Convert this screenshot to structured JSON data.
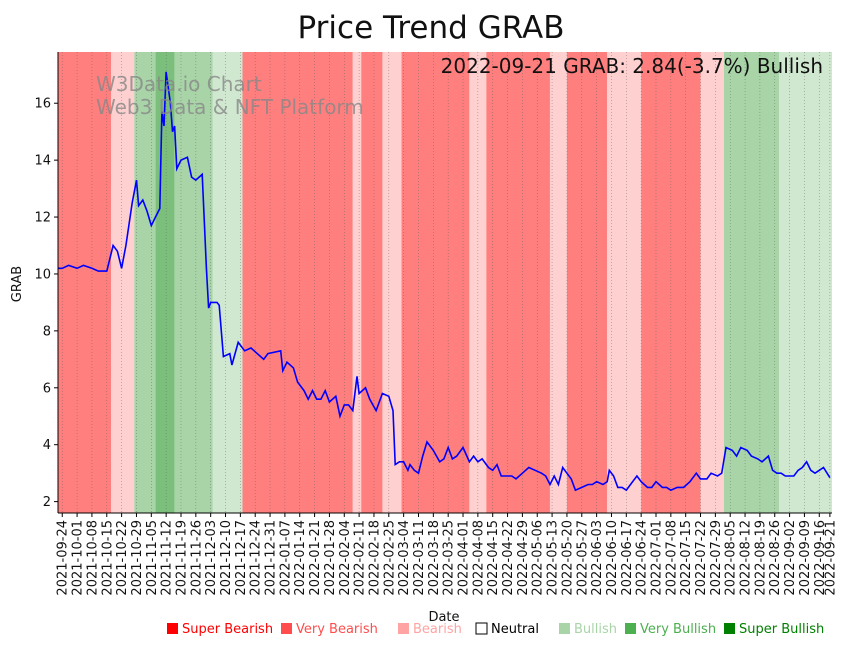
{
  "chart_data": {
    "type": "line",
    "title": "Price Trend GRAB",
    "xlabel": "Date",
    "ylabel": "GRAB",
    "annotation": "2022-09-21 GRAB: 2.84(-3.7%) Bullish",
    "watermark": [
      "W3Data.io Chart",
      "Web3 Data & NFT Platform"
    ],
    "ylim": [
      1.6,
      17.8
    ],
    "yticks": [
      2,
      4,
      6,
      8,
      10,
      12,
      14,
      16
    ],
    "date_range": [
      "2021-09-22",
      "2022-09-22"
    ],
    "xticks": [
      "2021-09-24",
      "2021-10-01",
      "2021-10-08",
      "2021-10-15",
      "2021-10-22",
      "2021-10-29",
      "2021-11-05",
      "2021-11-12",
      "2021-11-19",
      "2021-11-26",
      "2021-12-03",
      "2021-12-10",
      "2021-12-17",
      "2021-12-24",
      "2021-12-31",
      "2022-01-07",
      "2022-01-14",
      "2022-01-21",
      "2022-01-28",
      "2022-02-04",
      "2022-02-11",
      "2022-02-18",
      "2022-02-25",
      "2022-03-04",
      "2022-03-11",
      "2022-03-18",
      "2022-03-25",
      "2022-04-01",
      "2022-04-08",
      "2022-04-15",
      "2022-04-22",
      "2022-04-29",
      "2022-05-06",
      "2022-05-13",
      "2022-05-20",
      "2022-05-27",
      "2022-06-03",
      "2022-06-10",
      "2022-06-17",
      "2022-06-24",
      "2022-07-01",
      "2022-07-08",
      "2022-07-15",
      "2022-07-22",
      "2022-07-29",
      "2022-08-05",
      "2022-08-12",
      "2022-08-19",
      "2022-08-26",
      "2022-09-02",
      "2022-09-09",
      "2022-09-16",
      "2022-09-21"
    ],
    "series": [
      {
        "name": "GRAB",
        "color": "#0000ff",
        "points": [
          [
            "2021-09-22",
            10.2
          ],
          [
            "2021-09-24",
            10.2
          ],
          [
            "2021-09-27",
            10.3
          ],
          [
            "2021-10-01",
            10.2
          ],
          [
            "2021-10-04",
            10.3
          ],
          [
            "2021-10-08",
            10.2
          ],
          [
            "2021-10-11",
            10.1
          ],
          [
            "2021-10-15",
            10.1
          ],
          [
            "2021-10-18",
            11.0
          ],
          [
            "2021-10-20",
            10.8
          ],
          [
            "2021-10-22",
            10.2
          ],
          [
            "2021-10-24",
            11.0
          ],
          [
            "2021-10-27",
            12.5
          ],
          [
            "2021-10-29",
            13.3
          ],
          [
            "2021-10-30",
            12.4
          ],
          [
            "2021-11-01",
            12.6
          ],
          [
            "2021-11-03",
            12.2
          ],
          [
            "2021-11-05",
            11.7
          ],
          [
            "2021-11-07",
            12.0
          ],
          [
            "2021-11-09",
            12.3
          ],
          [
            "2021-11-10",
            15.7
          ],
          [
            "2021-11-11",
            15.2
          ],
          [
            "2021-11-12",
            17.1
          ],
          [
            "2021-11-14",
            16.0
          ],
          [
            "2021-11-15",
            15.0
          ],
          [
            "2021-11-16",
            15.2
          ],
          [
            "2021-11-17",
            13.7
          ],
          [
            "2021-11-19",
            14.0
          ],
          [
            "2021-11-22",
            14.1
          ],
          [
            "2021-11-24",
            13.4
          ],
          [
            "2021-11-26",
            13.3
          ],
          [
            "2021-11-29",
            13.5
          ],
          [
            "2021-12-01",
            10.2
          ],
          [
            "2021-12-02",
            8.8
          ],
          [
            "2021-12-03",
            9.0
          ],
          [
            "2021-12-06",
            9.0
          ],
          [
            "2021-12-07",
            8.9
          ],
          [
            "2021-12-09",
            7.1
          ],
          [
            "2021-12-12",
            7.2
          ],
          [
            "2021-12-13",
            6.8
          ],
          [
            "2021-12-16",
            7.6
          ],
          [
            "2021-12-19",
            7.3
          ],
          [
            "2021-12-22",
            7.4
          ],
          [
            "2021-12-28",
            7.0
          ],
          [
            "2021-12-30",
            7.2
          ],
          [
            "2022-01-05",
            7.3
          ],
          [
            "2022-01-06",
            6.6
          ],
          [
            "2022-01-08",
            6.9
          ],
          [
            "2022-01-11",
            6.7
          ],
          [
            "2022-01-13",
            6.2
          ],
          [
            "2022-01-16",
            5.9
          ],
          [
            "2022-01-18",
            5.6
          ],
          [
            "2022-01-20",
            5.9
          ],
          [
            "2022-01-22",
            5.6
          ],
          [
            "2022-01-24",
            5.6
          ],
          [
            "2022-01-26",
            5.9
          ],
          [
            "2022-01-28",
            5.5
          ],
          [
            "2022-01-31",
            5.7
          ],
          [
            "2022-02-02",
            5.0
          ],
          [
            "2022-02-04",
            5.4
          ],
          [
            "2022-02-06",
            5.4
          ],
          [
            "2022-02-08",
            5.2
          ],
          [
            "2022-02-10",
            6.4
          ],
          [
            "2022-02-11",
            5.8
          ],
          [
            "2022-02-14",
            6.0
          ],
          [
            "2022-02-16",
            5.6
          ],
          [
            "2022-02-19",
            5.2
          ],
          [
            "2022-02-22",
            5.8
          ],
          [
            "2022-02-25",
            5.7
          ],
          [
            "2022-02-27",
            5.2
          ],
          [
            "2022-02-28",
            3.3
          ],
          [
            "2022-03-02",
            3.4
          ],
          [
            "2022-03-04",
            3.4
          ],
          [
            "2022-03-06",
            3.1
          ],
          [
            "2022-03-07",
            3.3
          ],
          [
            "2022-03-09",
            3.1
          ],
          [
            "2022-03-11",
            3.0
          ],
          [
            "2022-03-13",
            3.6
          ],
          [
            "2022-03-15",
            4.1
          ],
          [
            "2022-03-18",
            3.8
          ],
          [
            "2022-03-21",
            3.4
          ],
          [
            "2022-03-23",
            3.5
          ],
          [
            "2022-03-25",
            3.9
          ],
          [
            "2022-03-27",
            3.5
          ],
          [
            "2022-03-29",
            3.6
          ],
          [
            "2022-04-01",
            3.9
          ],
          [
            "2022-04-04",
            3.4
          ],
          [
            "2022-04-06",
            3.6
          ],
          [
            "2022-04-08",
            3.4
          ],
          [
            "2022-04-10",
            3.5
          ],
          [
            "2022-04-13",
            3.2
          ],
          [
            "2022-04-15",
            3.1
          ],
          [
            "2022-04-17",
            3.3
          ],
          [
            "2022-04-19",
            2.9
          ],
          [
            "2022-04-21",
            2.9
          ],
          [
            "2022-04-24",
            2.9
          ],
          [
            "2022-04-26",
            2.8
          ],
          [
            "2022-04-29",
            3.0
          ],
          [
            "2022-05-02",
            3.2
          ],
          [
            "2022-05-05",
            3.1
          ],
          [
            "2022-05-08",
            3.0
          ],
          [
            "2022-05-10",
            2.9
          ],
          [
            "2022-05-12",
            2.6
          ],
          [
            "2022-05-14",
            2.9
          ],
          [
            "2022-05-16",
            2.6
          ],
          [
            "2022-05-18",
            3.2
          ],
          [
            "2022-05-20",
            3.0
          ],
          [
            "2022-05-22",
            2.8
          ],
          [
            "2022-05-24",
            2.4
          ],
          [
            "2022-05-27",
            2.5
          ],
          [
            "2022-05-30",
            2.6
          ],
          [
            "2022-06-01",
            2.6
          ],
          [
            "2022-06-03",
            2.7
          ],
          [
            "2022-06-06",
            2.6
          ],
          [
            "2022-06-08",
            2.7
          ],
          [
            "2022-06-09",
            3.1
          ],
          [
            "2022-06-11",
            2.9
          ],
          [
            "2022-06-13",
            2.5
          ],
          [
            "2022-06-15",
            2.5
          ],
          [
            "2022-06-17",
            2.4
          ],
          [
            "2022-06-19",
            2.6
          ],
          [
            "2022-06-22",
            2.9
          ],
          [
            "2022-06-24",
            2.7
          ],
          [
            "2022-06-27",
            2.5
          ],
          [
            "2022-06-29",
            2.5
          ],
          [
            "2022-07-01",
            2.7
          ],
          [
            "2022-07-04",
            2.5
          ],
          [
            "2022-07-06",
            2.5
          ],
          [
            "2022-07-08",
            2.4
          ],
          [
            "2022-07-11",
            2.5
          ],
          [
            "2022-07-14",
            2.5
          ],
          [
            "2022-07-17",
            2.7
          ],
          [
            "2022-07-20",
            3.0
          ],
          [
            "2022-07-22",
            2.8
          ],
          [
            "2022-07-25",
            2.8
          ],
          [
            "2022-07-27",
            3.0
          ],
          [
            "2022-07-30",
            2.9
          ],
          [
            "2022-08-01",
            3.0
          ],
          [
            "2022-08-03",
            3.9
          ],
          [
            "2022-08-06",
            3.8
          ],
          [
            "2022-08-08",
            3.6
          ],
          [
            "2022-08-10",
            3.9
          ],
          [
            "2022-08-13",
            3.8
          ],
          [
            "2022-08-15",
            3.6
          ],
          [
            "2022-08-18",
            3.5
          ],
          [
            "2022-08-20",
            3.4
          ],
          [
            "2022-08-23",
            3.6
          ],
          [
            "2022-08-25",
            3.1
          ],
          [
            "2022-08-27",
            3.0
          ],
          [
            "2022-08-29",
            3.0
          ],
          [
            "2022-08-31",
            2.9
          ],
          [
            "2022-09-02",
            2.9
          ],
          [
            "2022-09-04",
            2.9
          ],
          [
            "2022-09-06",
            3.1
          ],
          [
            "2022-09-08",
            3.2
          ],
          [
            "2022-09-10",
            3.4
          ],
          [
            "2022-09-12",
            3.1
          ],
          [
            "2022-09-14",
            3.0
          ],
          [
            "2022-09-16",
            3.1
          ],
          [
            "2022-09-18",
            3.2
          ],
          [
            "2022-09-21",
            2.84
          ]
        ]
      }
    ],
    "regimes": [
      [
        "2021-09-22",
        "2021-10-17",
        "very_bearish"
      ],
      [
        "2021-10-17",
        "2021-10-28",
        "bearish"
      ],
      [
        "2021-10-28",
        "2021-11-07",
        "very_bullish"
      ],
      [
        "2021-11-07",
        "2021-11-16",
        "super_bullish"
      ],
      [
        "2021-11-16",
        "2021-12-04",
        "very_bullish"
      ],
      [
        "2021-12-04",
        "2021-12-18",
        "bullish"
      ],
      [
        "2021-12-18",
        "2022-02-08",
        "very_bearish"
      ],
      [
        "2022-02-08",
        "2022-02-12",
        "bearish"
      ],
      [
        "2022-02-12",
        "2022-02-22",
        "very_bearish"
      ],
      [
        "2022-02-22",
        "2022-03-03",
        "bearish"
      ],
      [
        "2022-03-03",
        "2022-04-04",
        "very_bearish"
      ],
      [
        "2022-04-04",
        "2022-04-12",
        "bearish"
      ],
      [
        "2022-04-12",
        "2022-05-12",
        "very_bearish"
      ],
      [
        "2022-05-12",
        "2022-05-20",
        "bearish"
      ],
      [
        "2022-05-20",
        "2022-06-08",
        "very_bearish"
      ],
      [
        "2022-06-08",
        "2022-06-24",
        "bearish"
      ],
      [
        "2022-06-24",
        "2022-07-22",
        "very_bearish"
      ],
      [
        "2022-07-22",
        "2022-08-02",
        "bearish"
      ],
      [
        "2022-08-02",
        "2022-08-28",
        "very_bullish"
      ],
      [
        "2022-08-28",
        "2022-09-22",
        "bullish"
      ]
    ],
    "legend": [
      {
        "label": "Super Bearish",
        "color": "#ff0000",
        "key": "super_bearish"
      },
      {
        "label": "Very Bearish",
        "color": "#ff4d4d",
        "key": "very_bearish"
      },
      {
        "label": "Bearish",
        "color": "#ffa3a3",
        "key": "bearish"
      },
      {
        "label": "Neutral",
        "color": "#000000",
        "key": "neutral"
      },
      {
        "label": "Bullish",
        "color": "#a8d4a8",
        "key": "bullish"
      },
      {
        "label": "Very Bullish",
        "color": "#4caf50",
        "key": "very_bullish"
      },
      {
        "label": "Super Bullish",
        "color": "#008000",
        "key": "super_bullish"
      }
    ],
    "regime_colors": {
      "super_bearish": "#ff0000",
      "very_bearish": "#ff7f7f",
      "bearish": "#ffd0d0",
      "neutral": "#ffffff",
      "bullish": "#d0e8d0",
      "very_bullish": "#a8d4a8",
      "super_bullish": "#7cbf7c"
    }
  }
}
